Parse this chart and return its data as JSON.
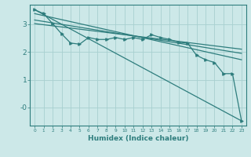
{
  "xlabel": "Humidex (Indice chaleur)",
  "bg_color": "#cce8e8",
  "line_color": "#2e7d7d",
  "grid_color": "#a8d0d0",
  "xlim": [
    -0.5,
    23.5
  ],
  "ylim": [
    -0.65,
    3.7
  ],
  "yticks": [
    0,
    1,
    2,
    3
  ],
  "ytick_labels": [
    "-0",
    "1",
    "2",
    "3"
  ],
  "xticks": [
    0,
    1,
    2,
    3,
    4,
    5,
    6,
    7,
    8,
    9,
    10,
    11,
    12,
    13,
    14,
    15,
    16,
    17,
    18,
    19,
    20,
    21,
    22,
    23
  ],
  "line1_x": [
    0,
    1,
    2,
    3,
    4,
    5,
    6,
    7,
    8,
    9,
    10,
    11,
    12,
    13,
    14,
    15,
    16,
    17,
    18,
    19,
    20,
    21,
    22,
    23
  ],
  "line1_y": [
    3.52,
    3.38,
    3.02,
    2.65,
    2.32,
    2.28,
    2.52,
    2.45,
    2.45,
    2.52,
    2.45,
    2.52,
    2.45,
    2.62,
    2.52,
    2.45,
    2.35,
    2.32,
    1.88,
    1.72,
    1.62,
    1.22,
    1.22,
    -0.48
  ],
  "line2_x": [
    0,
    23
  ],
  "line2_y": [
    3.52,
    -0.48
  ],
  "line3_x": [
    0,
    23
  ],
  "line3_y": [
    3.38,
    1.72
  ],
  "line4_x": [
    0,
    23
  ],
  "line4_y": [
    3.15,
    1.95
  ],
  "line5_x": [
    0,
    23
  ],
  "line5_y": [
    3.02,
    2.1
  ]
}
